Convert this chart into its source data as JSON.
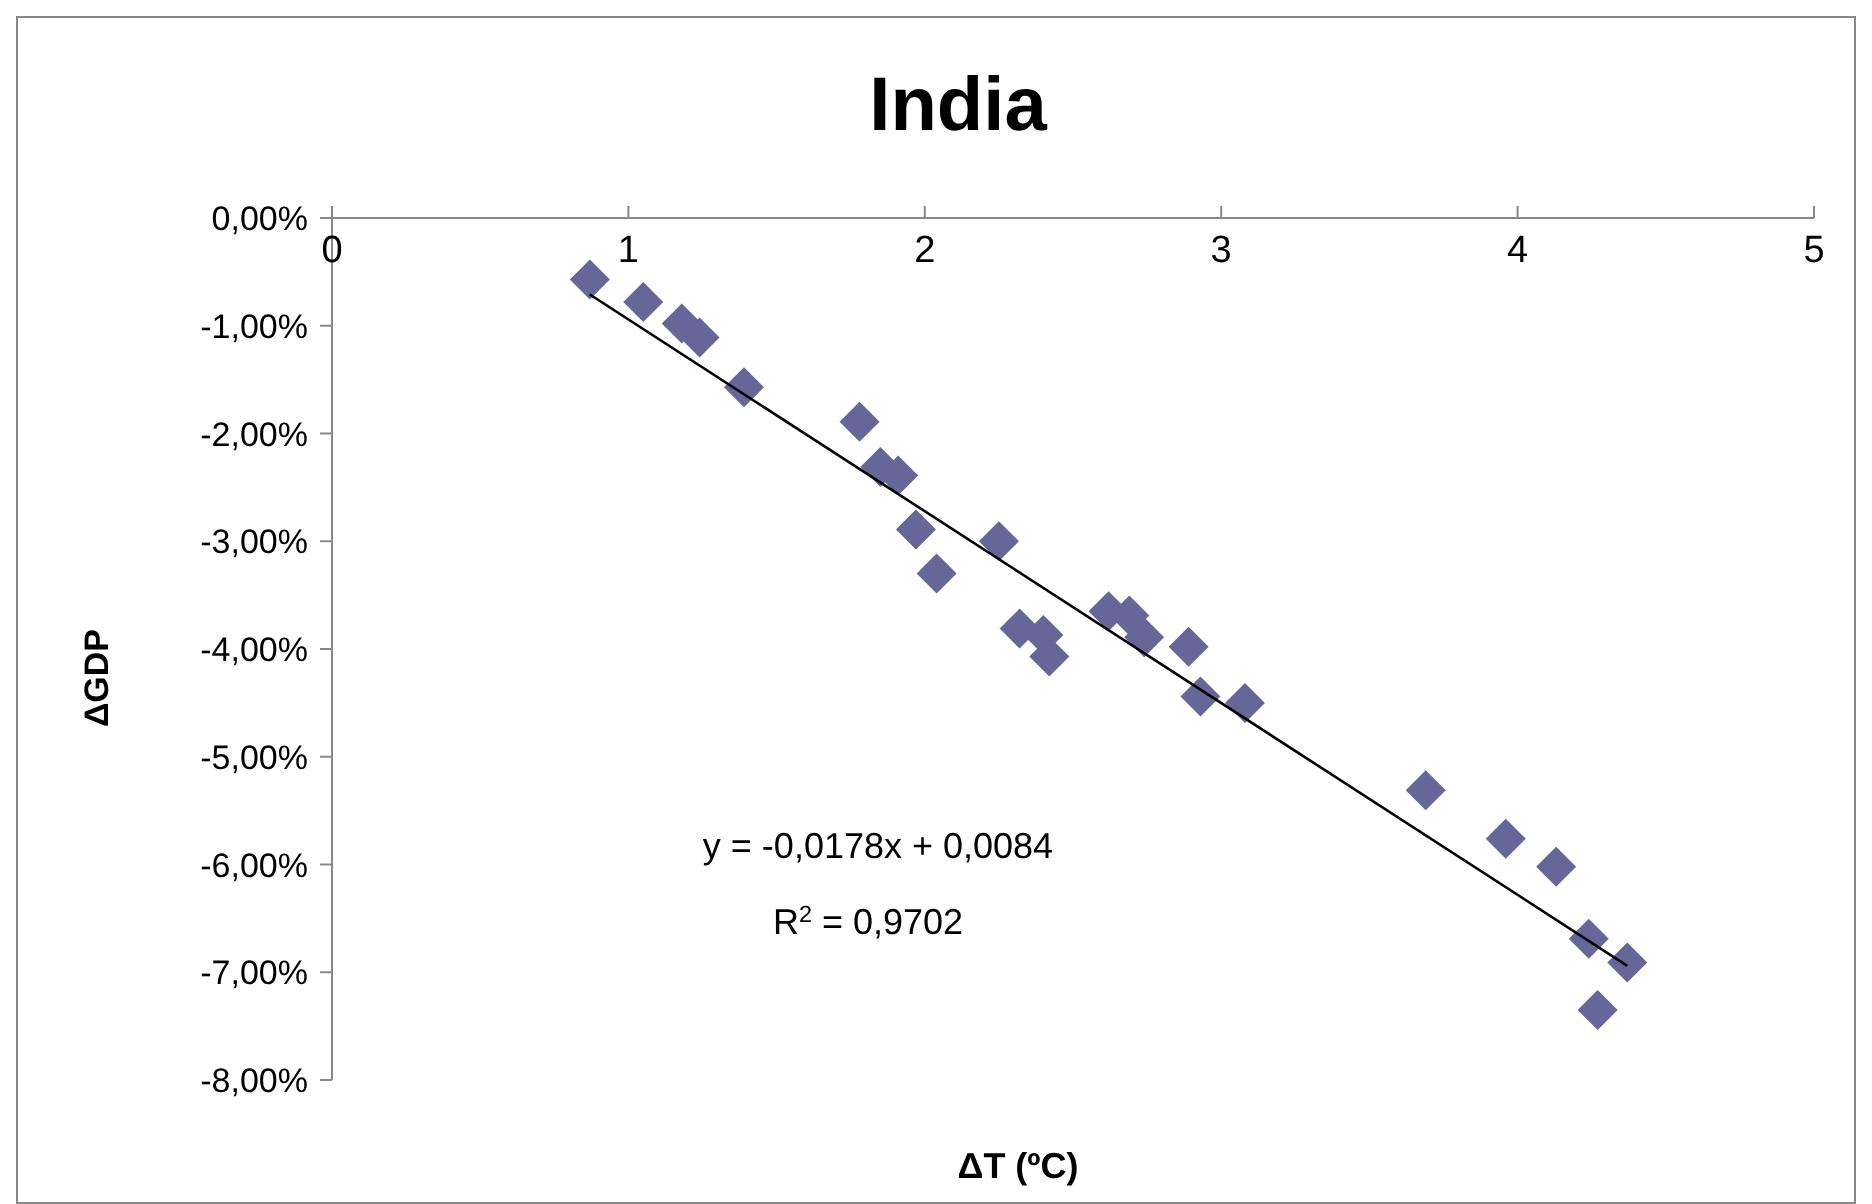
{
  "chart_data": {
    "type": "scatter",
    "title": "India",
    "xlabel": "ΔT (ºC)",
    "ylabel": "ΔGDP",
    "marker": "diamond",
    "grid": false,
    "xlim": [
      0,
      5
    ],
    "xticks": [
      0,
      1,
      2,
      3,
      4,
      5
    ],
    "ylim": [
      -8,
      0
    ],
    "yticks": [
      {
        "value": 0,
        "label": "0,00%"
      },
      {
        "value": -1,
        "label": "-1,00%"
      },
      {
        "value": -2,
        "label": "-2,00%"
      },
      {
        "value": -3,
        "label": "-3,00%"
      },
      {
        "value": -4,
        "label": "-4,00%"
      },
      {
        "value": -5,
        "label": "-5,00%"
      },
      {
        "value": -6,
        "label": "-6,00%"
      },
      {
        "value": -7,
        "label": "-7,00%"
      },
      {
        "value": -8,
        "label": "-8,00%"
      }
    ],
    "annotations": [
      "y = -0,0178x + 0,0084",
      "R$^{2}$ = 0,9702"
    ],
    "series": [
      {
        "color": "#666699",
        "x": [
          0.87,
          1.05,
          1.18,
          1.24,
          1.39,
          1.78,
          1.85,
          1.91,
          1.97,
          2.04,
          2.25,
          2.32,
          2.4,
          2.42,
          2.62,
          2.69,
          2.74,
          2.89,
          2.93,
          3.08,
          3.69,
          3.96,
          4.13,
          4.24,
          4.37,
          4.27
        ],
        "values": [
          -0.57,
          -0.78,
          -0.98,
          -1.11,
          -1.57,
          -1.89,
          -2.31,
          -2.39,
          -2.89,
          -3.3,
          -3.0,
          -3.81,
          -3.87,
          -4.07,
          -3.65,
          -3.69,
          -3.89,
          -3.98,
          -4.44,
          -4.5,
          -5.31,
          -5.76,
          -6.02,
          -6.69,
          -6.91,
          -7.35
        ]
      },
      {
        "type": "line",
        "marker": "none",
        "color": "#000000",
        "x": [
          0.87,
          4.37
        ],
        "values": [
          -0.71,
          -6.94
        ]
      }
    ]
  }
}
